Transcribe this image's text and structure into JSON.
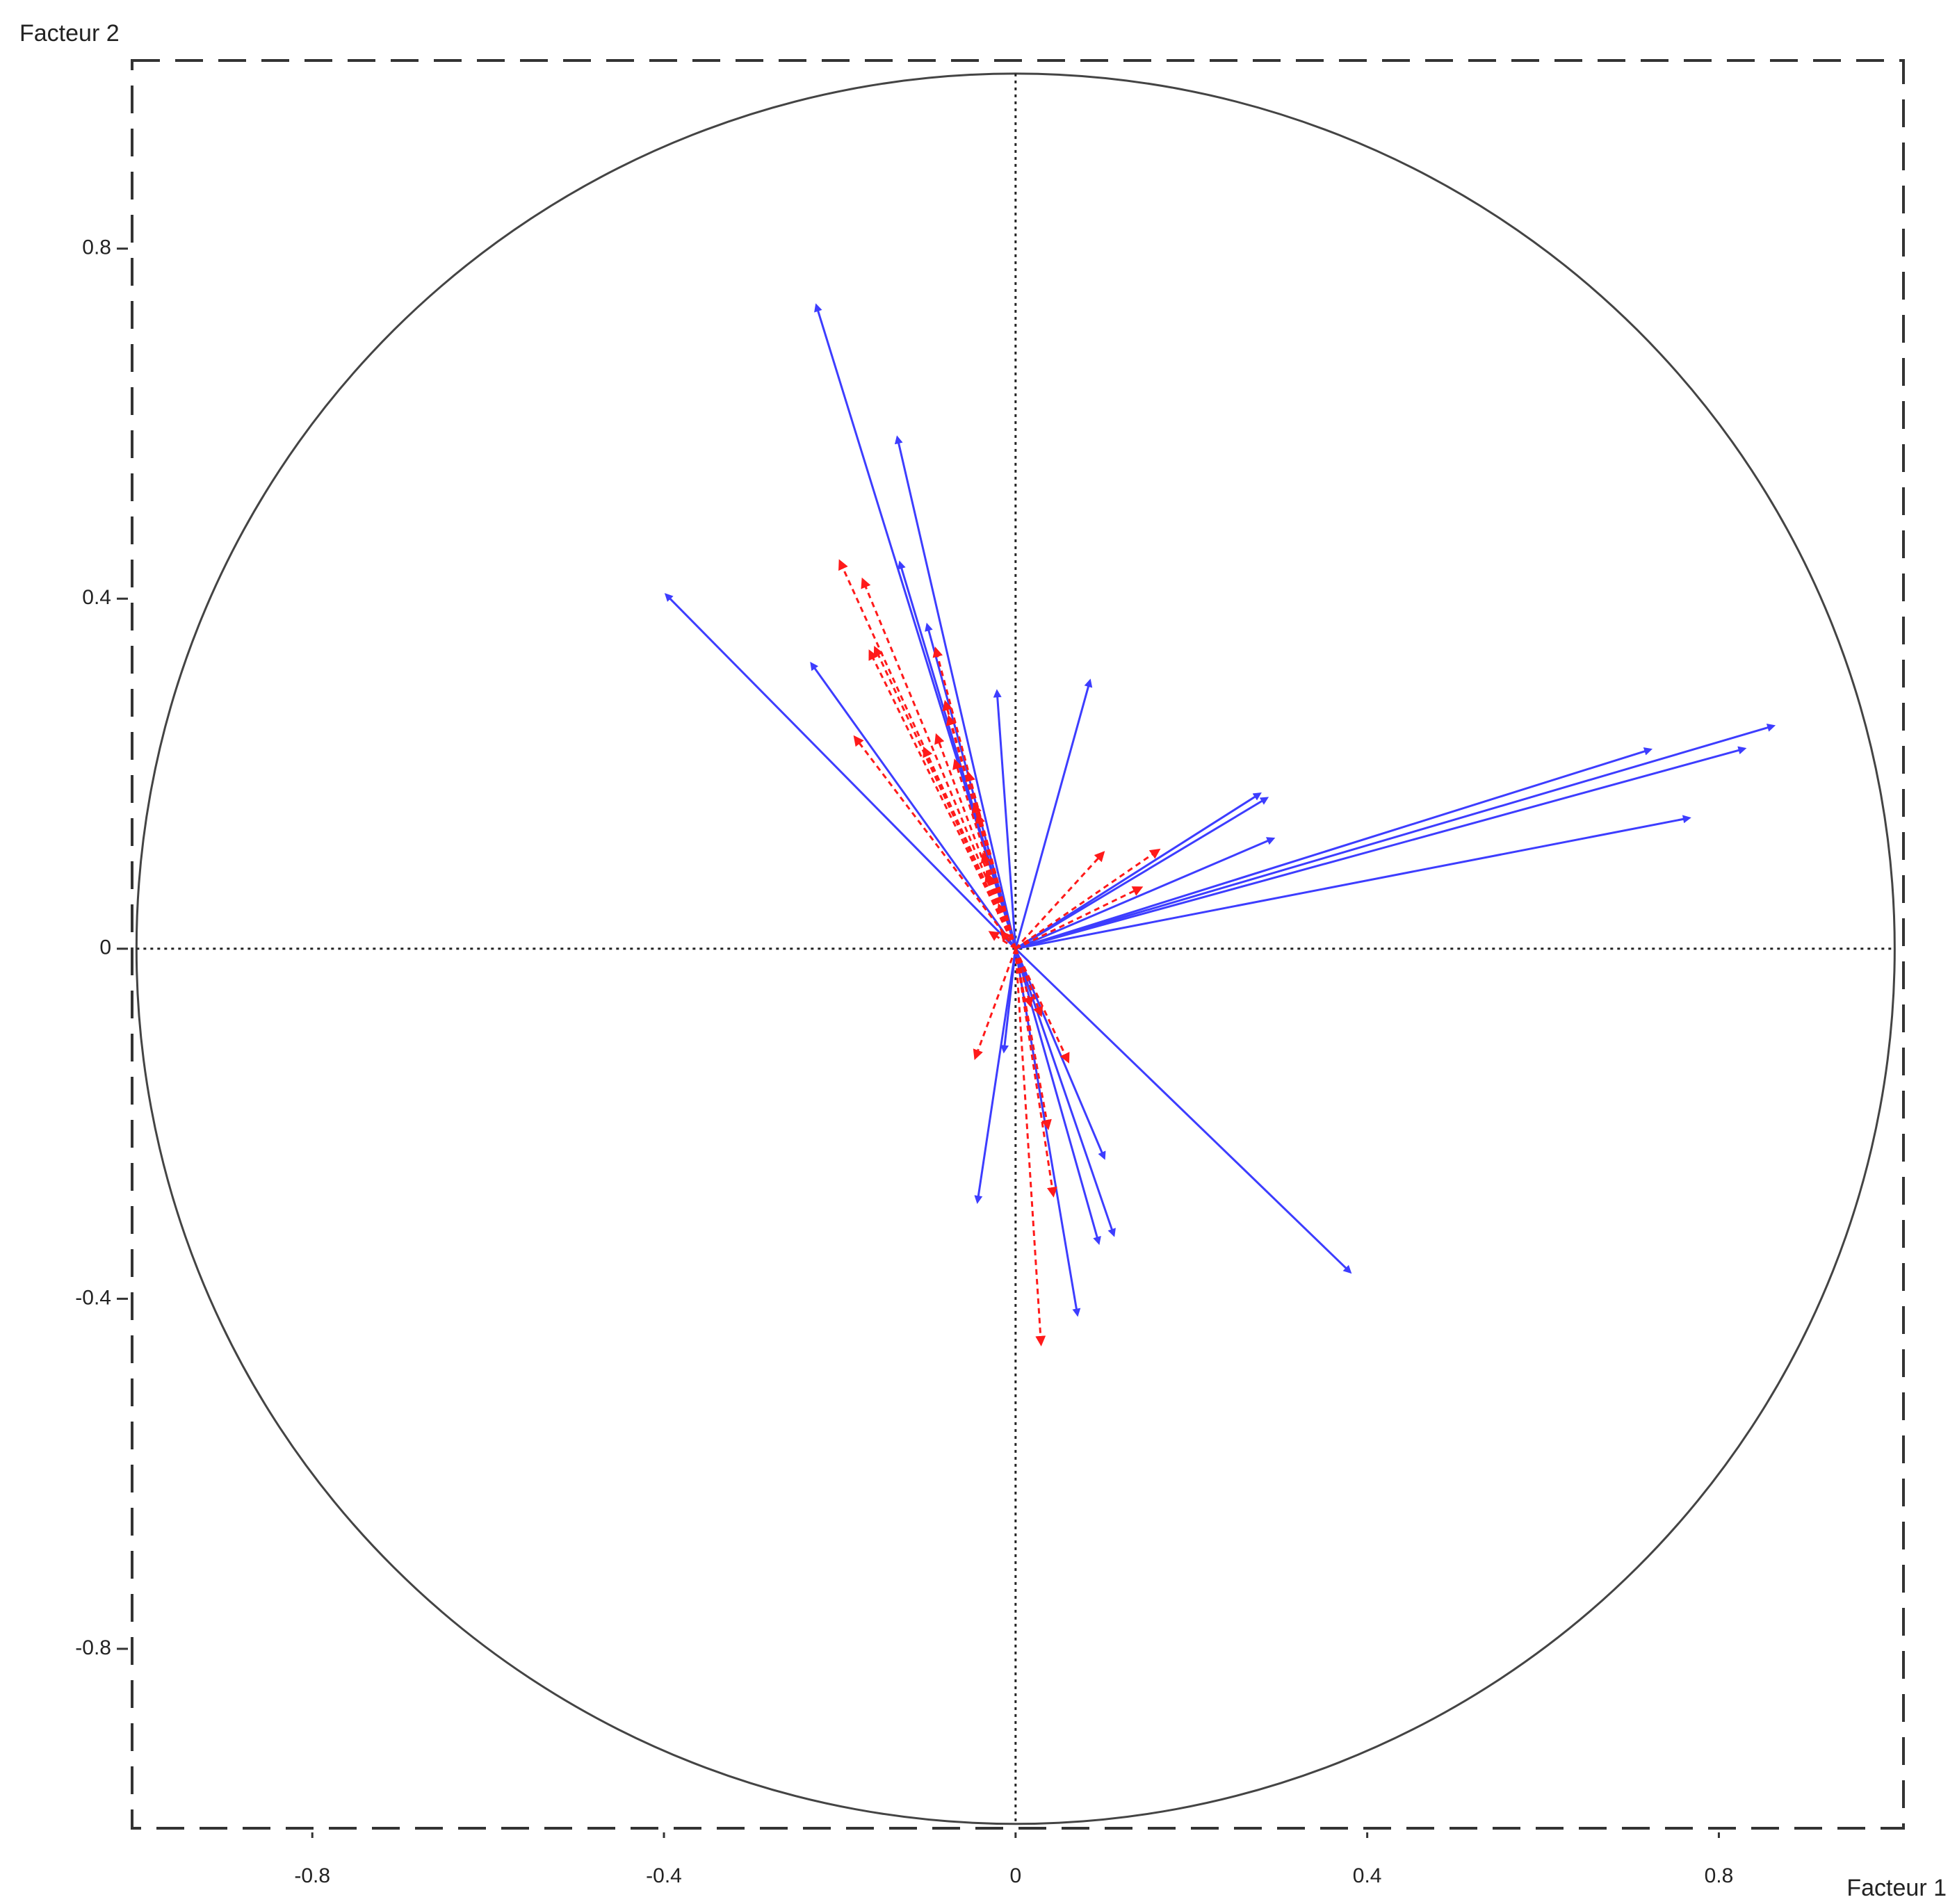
{
  "chart_data": {
    "type": "vector",
    "x_label": "Facteur 1",
    "y_label": "Facteur 2",
    "xlim": [
      -1.005,
      1.01
    ],
    "ylim": [
      -1.005,
      1.015
    ],
    "xticks": [
      -0.8,
      -0.4,
      0,
      0.4,
      0.8
    ],
    "yticks": [
      -0.8,
      -0.4,
      0,
      0.4,
      0.8
    ],
    "circle_radius": 1,
    "zero_lines": true,
    "series": [
      {
        "color": "#3d3dff",
        "line_style": "solid",
        "x": [
          -0.226,
          -0.134,
          -0.131,
          -0.1,
          -0.396,
          -0.231,
          -0.021,
          0.084,
          0.86,
          0.72,
          0.827,
          0.764,
          0.276,
          0.284,
          0.291,
          0.379,
          0.111,
          0.094,
          0.1,
          0.07,
          -0.043,
          -0.013
        ],
        "values": [
          0.733,
          0.582,
          0.439,
          0.368,
          0.403,
          0.324,
          0.292,
          0.304,
          0.254,
          0.227,
          0.228,
          0.149,
          0.176,
          0.171,
          0.125,
          -0.368,
          -0.325,
          -0.334,
          -0.237,
          -0.416,
          -0.287,
          -0.115
        ]
      },
      {
        "color": "#ff1a1a",
        "line_style": "dashed",
        "x": [
          -0.2,
          -0.174,
          -0.166,
          -0.16,
          -0.183,
          -0.091,
          -0.08,
          -0.076,
          -0.09,
          -0.104,
          -0.069,
          -0.054,
          -0.047,
          -0.043,
          -0.037,
          -0.033,
          -0.019,
          -0.029,
          -0.016,
          0.1,
          0.163,
          0.143,
          -0.046,
          0.017,
          0.029,
          0.06,
          0.037,
          0.043,
          0.029
        ],
        "values": [
          0.443,
          0.422,
          0.34,
          0.344,
          0.242,
          0.343,
          0.282,
          0.265,
          0.244,
          0.229,
          0.215,
          0.201,
          0.165,
          0.153,
          0.108,
          0.086,
          0.05,
          0.019,
          0.019,
          0.11,
          0.113,
          0.07,
          -0.125,
          -0.065,
          -0.076,
          -0.129,
          -0.205,
          -0.282,
          -0.452
        ]
      }
    ]
  }
}
